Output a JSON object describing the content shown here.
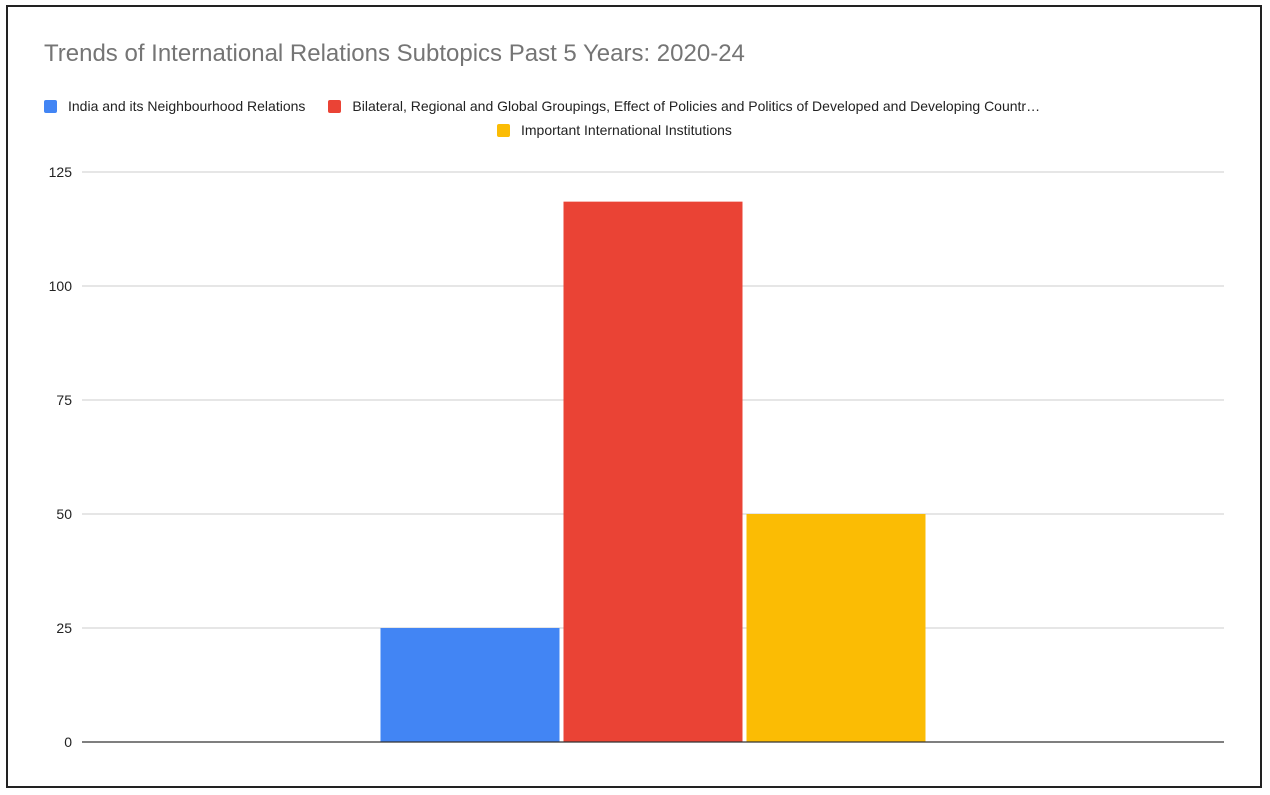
{
  "chart_data": {
    "type": "bar",
    "title": "Trends of International Relations Subtopics Past 5 Years: 2020-24",
    "xlabel": "",
    "ylabel": "",
    "categories": [
      ""
    ],
    "series": [
      {
        "name": "India and its Neighbourhood Relations",
        "values": [
          25
        ],
        "color": "#4285f4"
      },
      {
        "name": "Bilateral, Regional and Global Groupings, Effect of Policies and Politics of Developed and Developing Countr…",
        "values": [
          118.5
        ],
        "color": "#ea4335"
      },
      {
        "name": "Important International Institutions",
        "values": [
          50
        ],
        "color": "#fbbc04"
      }
    ],
    "ylim": [
      0,
      125
    ],
    "yticks": [
      "0",
      "25",
      "50",
      "75",
      "100",
      "125"
    ],
    "grid": true,
    "legend_position": "top"
  },
  "colors": {
    "title": "#757575",
    "gridline": "#cccccc",
    "axis": "#333333",
    "text": "#222222"
  }
}
